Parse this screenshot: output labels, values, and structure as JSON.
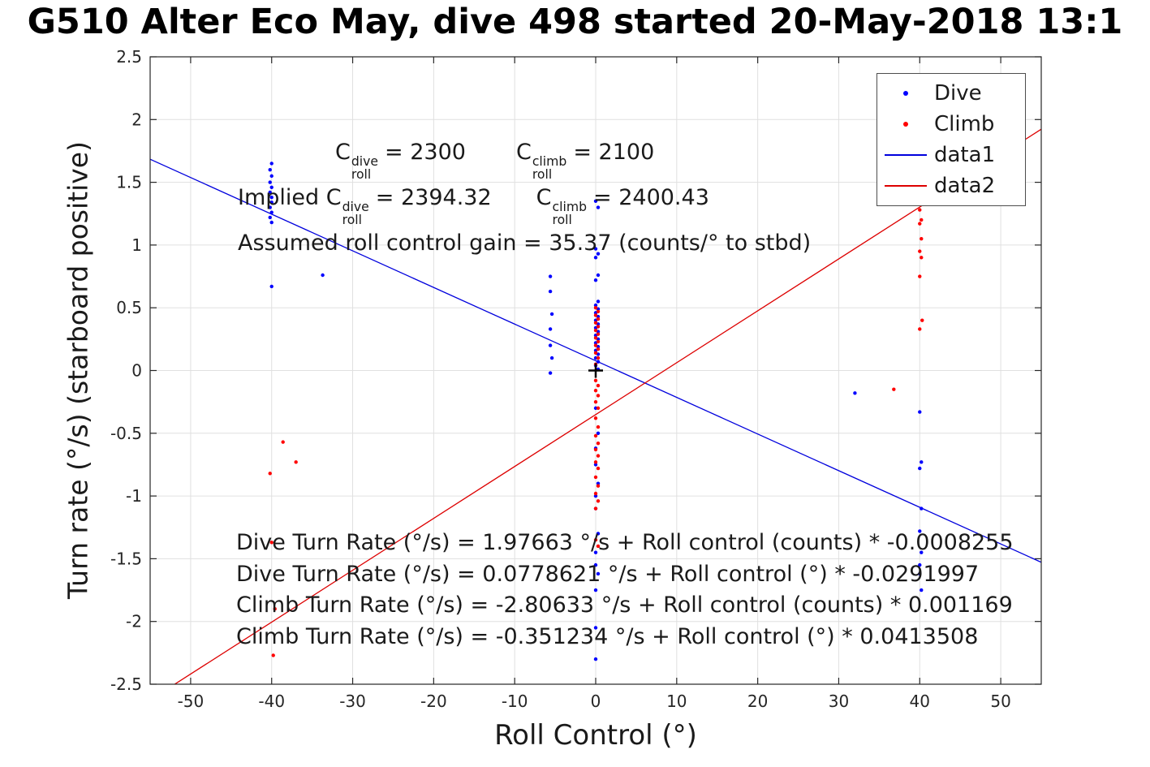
{
  "chart_data": {
    "type": "scatter",
    "title": "G510 Alter Eco May, dive 498 started 20-May-2018 13:1",
    "xlabel": "Roll Control (°)",
    "ylabel": "Turn rate (°/s) (starboard positive)",
    "xlim": [
      -55,
      55
    ],
    "ylim": [
      -2.5,
      2.5
    ],
    "xticks": [
      -50,
      -40,
      -30,
      -20,
      -10,
      0,
      10,
      20,
      30,
      40,
      50
    ],
    "yticks": [
      -2.5,
      -2,
      -1.5,
      -1,
      -0.5,
      0,
      0.5,
      1,
      1.5,
      2,
      2.5
    ],
    "grid": true,
    "legend": {
      "position": "top-right",
      "entries": [
        {
          "label": "Dive",
          "marker": "dot",
          "color": "#0000ff"
        },
        {
          "label": "Climb",
          "marker": "dot",
          "color": "#ff0000"
        },
        {
          "label": "data1",
          "marker": "line",
          "color": "#0000dd"
        },
        {
          "label": "data2",
          "marker": "line",
          "color": "#dd0000"
        }
      ]
    },
    "series": [
      {
        "name": "Dive",
        "type": "scatter",
        "color": "#0000ff",
        "points": [
          [
            -40,
            1.65
          ],
          [
            -40.2,
            1.6
          ],
          [
            -40,
            1.55
          ],
          [
            -40.2,
            1.5
          ],
          [
            -40,
            1.46
          ],
          [
            -40.2,
            1.42
          ],
          [
            -40,
            1.38
          ],
          [
            -40,
            1.34
          ],
          [
            -40.2,
            1.3
          ],
          [
            -40,
            1.26
          ],
          [
            -40.2,
            1.22
          ],
          [
            -40,
            1.18
          ],
          [
            -40,
            0.67
          ],
          [
            -33.7,
            0.76
          ],
          [
            -5.6,
            0.75
          ],
          [
            -5.6,
            0.63
          ],
          [
            -5.4,
            0.45
          ],
          [
            -5.6,
            0.33
          ],
          [
            -5.6,
            0.2
          ],
          [
            -5.4,
            0.1
          ],
          [
            -5.6,
            -0.02
          ],
          [
            0,
            1.35
          ],
          [
            0.3,
            1.3
          ],
          [
            0,
            0.97
          ],
          [
            0.3,
            0.93
          ],
          [
            0,
            0.9
          ],
          [
            0.3,
            0.76
          ],
          [
            0,
            0.72
          ],
          [
            0.3,
            0.55
          ],
          [
            0,
            0.52
          ],
          [
            0.3,
            0.49
          ],
          [
            0,
            0.46
          ],
          [
            0.3,
            0.43
          ],
          [
            0,
            0.4
          ],
          [
            0.3,
            0.37
          ],
          [
            0,
            0.34
          ],
          [
            0.3,
            0.31
          ],
          [
            0,
            0.28
          ],
          [
            0.3,
            0.25
          ],
          [
            0,
            0.22
          ],
          [
            0.3,
            0.19
          ],
          [
            0,
            0.16
          ],
          [
            0.3,
            0.13
          ],
          [
            0,
            0.1
          ],
          [
            0.3,
            0.07
          ],
          [
            0,
            0.04
          ],
          [
            0.3,
            0.01
          ],
          [
            0,
            -0.3
          ],
          [
            0.3,
            -0.5
          ],
          [
            0,
            -0.62
          ],
          [
            0,
            -0.75
          ],
          [
            0.3,
            -0.9
          ],
          [
            0,
            -1.0
          ],
          [
            0,
            -1.1
          ],
          [
            0.3,
            -1.3
          ],
          [
            0,
            -1.45
          ],
          [
            0,
            -1.55
          ],
          [
            0.3,
            -1.62
          ],
          [
            0,
            -1.75
          ],
          [
            0,
            -2.05
          ],
          [
            0,
            -2.3
          ],
          [
            32,
            -0.18
          ],
          [
            40,
            -0.33
          ],
          [
            40.2,
            -0.73
          ],
          [
            40,
            -0.78
          ],
          [
            40.2,
            -1.1
          ],
          [
            40,
            -1.28
          ],
          [
            40.2,
            -1.45
          ],
          [
            40,
            -1.55
          ],
          [
            40,
            -1.62
          ],
          [
            40.2,
            -1.75
          ]
        ]
      },
      {
        "name": "Climb",
        "type": "scatter",
        "color": "#ff0000",
        "points": [
          [
            -40.2,
            -0.82
          ],
          [
            -38.6,
            -0.57
          ],
          [
            -37,
            -0.73
          ],
          [
            -40,
            -1.37
          ],
          [
            -39.6,
            -1.9
          ],
          [
            -39.8,
            -2.27
          ],
          [
            0,
            0.5
          ],
          [
            0.3,
            0.47
          ],
          [
            0,
            0.44
          ],
          [
            0.3,
            0.41
          ],
          [
            0,
            0.38
          ],
          [
            0.3,
            0.35
          ],
          [
            0,
            0.32
          ],
          [
            0.3,
            0.29
          ],
          [
            0,
            0.26
          ],
          [
            0.3,
            0.23
          ],
          [
            0,
            0.2
          ],
          [
            0.3,
            0.17
          ],
          [
            0,
            0.14
          ],
          [
            0.3,
            0.1
          ],
          [
            0,
            0.05
          ],
          [
            0,
            -0.08
          ],
          [
            0.3,
            -0.12
          ],
          [
            0,
            -0.16
          ],
          [
            0.3,
            -0.2
          ],
          [
            0,
            -0.25
          ],
          [
            0.3,
            -0.3
          ],
          [
            0,
            -0.38
          ],
          [
            0.3,
            -0.45
          ],
          [
            0,
            -0.52
          ],
          [
            0.3,
            -0.58
          ],
          [
            0,
            -0.63
          ],
          [
            0.3,
            -0.68
          ],
          [
            0,
            -0.73
          ],
          [
            0.3,
            -0.78
          ],
          [
            0,
            -0.85
          ],
          [
            0.3,
            -0.92
          ],
          [
            0,
            -0.98
          ],
          [
            0.3,
            -1.04
          ],
          [
            0,
            -1.1
          ],
          [
            0,
            -1.35
          ],
          [
            0.3,
            -1.4
          ],
          [
            36.8,
            -0.15
          ],
          [
            40.2,
            1.35
          ],
          [
            40,
            1.28
          ],
          [
            40.2,
            1.2
          ],
          [
            40,
            1.17
          ],
          [
            40.2,
            1.05
          ],
          [
            40,
            0.95
          ],
          [
            40.2,
            0.9
          ],
          [
            40,
            0.75
          ],
          [
            40.3,
            0.4
          ],
          [
            40,
            0.33
          ]
        ]
      },
      {
        "name": "data1",
        "type": "line",
        "color": "#0000dd",
        "slope": -0.0291997,
        "intercept": 0.0778621
      },
      {
        "name": "data2",
        "type": "line",
        "color": "#dd0000",
        "slope": 0.0413508,
        "intercept": -0.351234
      },
      {
        "name": "origin",
        "type": "plus",
        "color": "#000000",
        "points": [
          [
            0,
            0
          ]
        ]
      }
    ]
  },
  "annotations": {
    "coeff": {
      "dive": {
        "prefix": "C",
        "sup": "dive",
        "sub": "roll",
        "value": "= 2300"
      },
      "climb": {
        "prefix": "C",
        "sup": "climb",
        "sub": "roll",
        "value": "= 2100"
      }
    },
    "implied": {
      "lead": "Implied ",
      "dive": {
        "prefix": "C",
        "sup": "dive",
        "sub": "roll",
        "value": "= 2394.32"
      },
      "climb": {
        "prefix": "C",
        "sup": "climb",
        "sub": "roll",
        "value": "= 2400.43"
      }
    },
    "gain": "Assumed roll control gain = 35.37 (counts/° to stbd)",
    "equations": [
      "Dive Turn Rate (°/s) = 1.97663 °/s + Roll control (counts) * -0.0008255",
      "Dive Turn Rate (°/s) = 0.0778621 °/s + Roll control (°) * -0.0291997",
      "Climb Turn Rate (°/s) = -2.80633 °/s + Roll control (counts) * 0.001169",
      "Climb Turn Rate (°/s) = -0.351234 °/s + Roll control (°) * 0.0413508"
    ]
  }
}
